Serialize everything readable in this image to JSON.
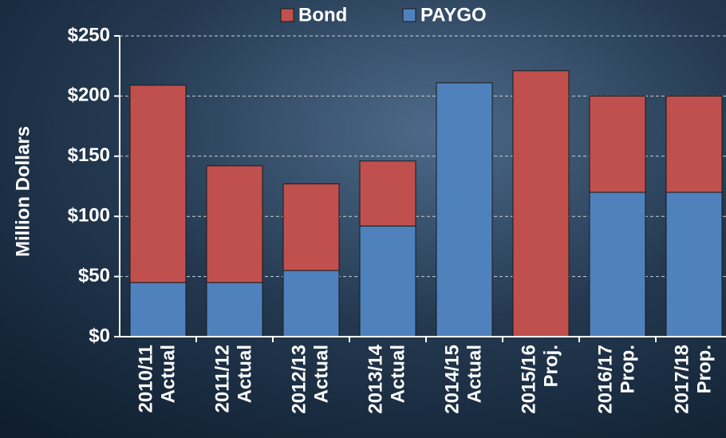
{
  "chart_data": {
    "type": "stacked_bar",
    "y_label": "Million Dollars",
    "categories": [
      [
        "2010/11",
        "Actual"
      ],
      [
        "2011/12",
        "Actual"
      ],
      [
        "2012/13",
        "Actual"
      ],
      [
        "2013/14",
        "Actual"
      ],
      [
        "2014/15",
        "Actual"
      ],
      [
        "2015/16",
        "Proj."
      ],
      [
        "2016/17",
        "Prop."
      ],
      [
        "2017/18",
        "Prop."
      ]
    ],
    "series": [
      {
        "name": "Bond",
        "color": "#c0504d",
        "values": [
          164,
          97,
          72,
          54,
          0,
          221,
          80,
          80
        ]
      },
      {
        "name": "PAYGO",
        "color": "#4f81bd",
        "values": [
          45,
          45,
          55,
          92,
          211,
          0,
          120,
          120
        ]
      }
    ],
    "ylim": [
      0,
      250
    ],
    "yticks": [
      {
        "value": 0,
        "label": "$0"
      },
      {
        "value": 50,
        "label": "$50"
      },
      {
        "value": 100,
        "label": "$100"
      },
      {
        "value": 150,
        "label": "$150"
      },
      {
        "value": 200,
        "label": "$200"
      },
      {
        "value": 250,
        "label": "$250"
      }
    ],
    "grid": true,
    "legend": "top"
  }
}
